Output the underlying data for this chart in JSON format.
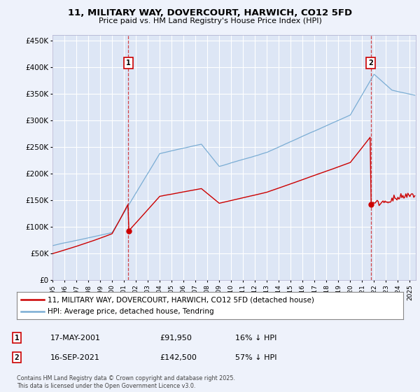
{
  "title": "11, MILITARY WAY, DOVERCOURT, HARWICH, CO12 5FD",
  "subtitle": "Price paid vs. HM Land Registry's House Price Index (HPI)",
  "bg_color": "#eef2fb",
  "plot_bg_color": "#dde6f5",
  "grid_color": "#ffffff",
  "hpi_color": "#7aadd4",
  "price_color": "#cc0000",
  "annotation_color": "#cc0000",
  "ylim": [
    0,
    460000
  ],
  "yticks": [
    0,
    50000,
    100000,
    150000,
    200000,
    250000,
    300000,
    350000,
    400000,
    450000
  ],
  "legend_labels": [
    "11, MILITARY WAY, DOVERCOURT, HARWICH, CO12 5FD (detached house)",
    "HPI: Average price, detached house, Tendring"
  ],
  "annotation1": {
    "label": "1",
    "date": "17-MAY-2001",
    "price": "£91,950",
    "pct": "16% ↓ HPI"
  },
  "annotation2": {
    "label": "2",
    "date": "16-SEP-2021",
    "price": "£142,500",
    "pct": "57% ↓ HPI"
  },
  "footer": "Contains HM Land Registry data © Crown copyright and database right 2025.\nThis data is licensed under the Open Government Licence v3.0.",
  "sale1_year": 2001.37,
  "sale1_price": 91950,
  "sale2_year": 2021.71,
  "sale2_price": 142500,
  "xmin": 1995,
  "xmax": 2025.5
}
